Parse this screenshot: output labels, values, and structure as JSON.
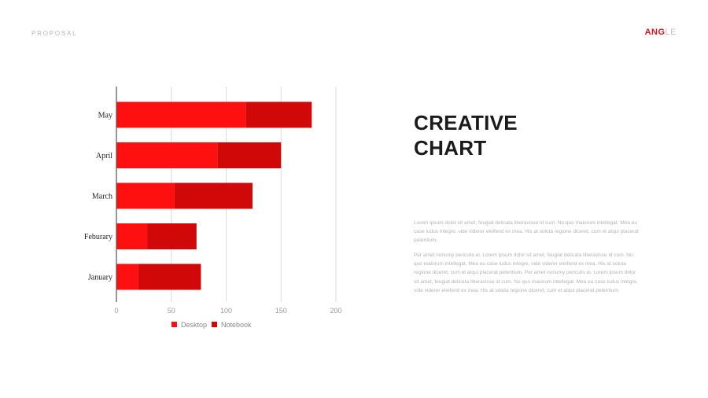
{
  "header": {
    "section_label": "PROPOSAL"
  },
  "logo": {
    "strong": "ANG",
    "light": "LE"
  },
  "colors": {
    "desktop": "#ff1010",
    "notebook": "#d10808",
    "grid": "#dcdcdc",
    "axis": "#555555"
  },
  "title_lines": [
    "CREATIVE",
    "CHART"
  ],
  "paragraphs": [
    "Lorem ipsum dolor sit amet, feugiat delicata liberavisse id cum. No quo maiorum intellegat. Mea eu case ludus integre, vide viderer eleifend ex mea. His at soluta regione diceret, cum et atqui placerat petentium.",
    "Per amet nonumy periculis ei. Lorem ipsum dolor sit amet, feugiat delicata liberavisse id cum. No quo maiorum intellegat. Mea eu case ludus integre, vide viderer eleifend ex mea. His at soluta regione diceret, cum et atqui placerat petentium. Per amet nonumy periculis ei. Lorem ipsum dolor sit amet, feugiat delicata liberavisse id cum. No quo maiorum intellegat. Mea eu case ludus integre, vide viderer eleifend ex mea. His at soluta regione diceret, cum et atqui placerat petentium."
  ],
  "chart_data": {
    "type": "bar",
    "orientation": "horizontal",
    "stacked": true,
    "categories": [
      "May",
      "April",
      "March",
      "Feburary",
      "January"
    ],
    "series": [
      {
        "name": "Desktop",
        "values": [
          118,
          92,
          53,
          28,
          20
        ]
      },
      {
        "name": "Notebook",
        "values": [
          60,
          58,
          71,
          45,
          57
        ]
      }
    ],
    "xlim": [
      0,
      200
    ],
    "xticks": [
      0,
      50,
      100,
      150,
      200
    ],
    "grid": true,
    "legend_position": "bottom-center"
  }
}
